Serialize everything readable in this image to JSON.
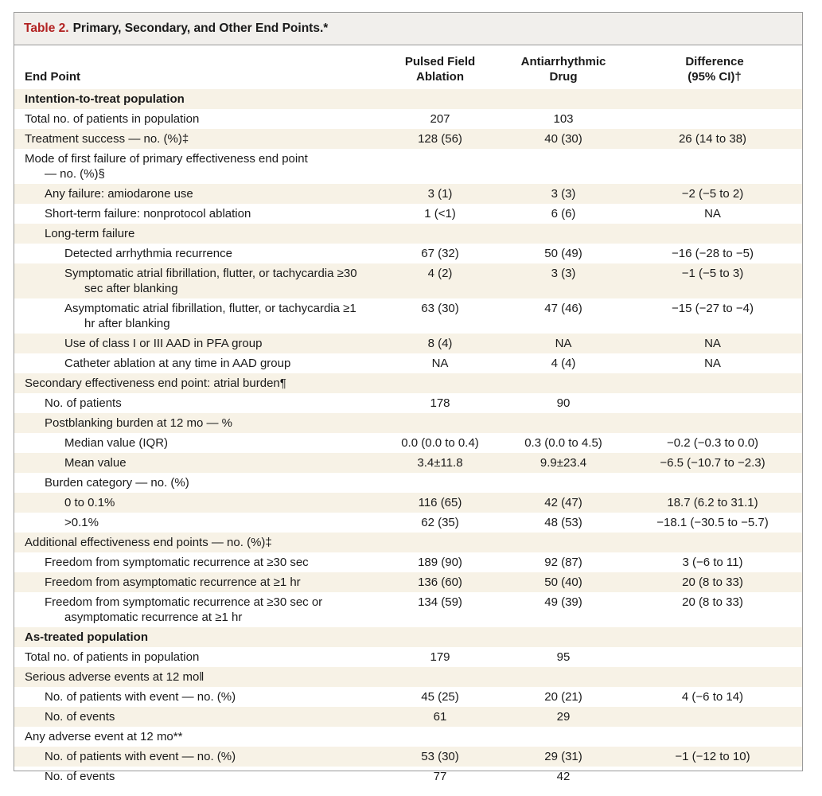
{
  "table": {
    "label": "Table 2.",
    "title": "Primary, Secondary, and Other End Points.*",
    "headers": {
      "end_point": "End Point",
      "pfa_line1": "Pulsed Field",
      "pfa_line2": "Ablation",
      "aad_line1": "Antiarrhythmic",
      "aad_line2": "Drug",
      "diff_line1": "Difference",
      "diff_line2": "(95% CI)†"
    },
    "rows": [
      {
        "label": "Intention-to-treat population",
        "pfa": "",
        "aad": "",
        "diff": ""
      },
      {
        "label": "Total no. of patients in population",
        "pfa": "207",
        "aad": "103",
        "diff": ""
      },
      {
        "label": "Treatment success — no. (%)‡",
        "pfa": "128 (56)",
        "aad": "40 (30)",
        "diff": "26 (14 to 38)"
      },
      {
        "label": "Mode of first failure of primary effectiveness end point",
        "label2": "— no. (%)§",
        "pfa": "",
        "aad": "",
        "diff": ""
      },
      {
        "label": "Any failure: amiodarone use",
        "pfa": "3 (1)",
        "aad": "3 (3)",
        "diff": "−2 (−5 to 2)"
      },
      {
        "label": "Short-term failure: nonprotocol ablation",
        "pfa": "1 (<1)",
        "aad": "6 (6)",
        "diff": "NA"
      },
      {
        "label": "Long-term failure",
        "pfa": "",
        "aad": "",
        "diff": ""
      },
      {
        "label": "Detected arrhythmia recurrence",
        "pfa": "67 (32)",
        "aad": "50 (49)",
        "diff": "−16 (−28 to −5)"
      },
      {
        "label": "Symptomatic atrial fibrillation, flutter, or tachycardia ≥30",
        "label2": "sec after blanking",
        "pfa": "4 (2)",
        "aad": "3 (3)",
        "diff": "−1 (−5 to 3)"
      },
      {
        "label": "Asymptomatic atrial fibrillation, flutter, or tachycardia ≥1",
        "label2": "hr after blanking",
        "pfa": "63 (30)",
        "aad": "47 (46)",
        "diff": "−15 (−27 to −4)"
      },
      {
        "label": "Use of class I or III AAD in PFA group",
        "pfa": "8 (4)",
        "aad": "NA",
        "diff": "NA"
      },
      {
        "label": "Catheter ablation at any time in AAD group",
        "pfa": "NA",
        "aad": "4 (4)",
        "diff": "NA"
      },
      {
        "label": "Secondary effectiveness end point: atrial burden¶",
        "pfa": "",
        "aad": "",
        "diff": ""
      },
      {
        "label": "No. of patients",
        "pfa": "178",
        "aad": "90",
        "diff": ""
      },
      {
        "label": "Postblanking burden at 12 mo — %",
        "pfa": "",
        "aad": "",
        "diff": ""
      },
      {
        "label": "Median value (IQR)",
        "pfa": "0.0 (0.0 to 0.4)",
        "aad": "0.3 (0.0 to 4.5)",
        "diff": "−0.2 (−0.3 to 0.0)"
      },
      {
        "label": "Mean value",
        "pfa": "3.4±11.8",
        "aad": "9.9±23.4",
        "diff": "−6.5 (−10.7 to −2.3)"
      },
      {
        "label": "Burden category — no. (%)",
        "pfa": "",
        "aad": "",
        "diff": ""
      },
      {
        "label": "0 to 0.1%",
        "pfa": "116 (65)",
        "aad": "42 (47)",
        "diff": "18.7 (6.2 to 31.1)"
      },
      {
        "label": ">0.1%",
        "pfa": "62 (35)",
        "aad": "48 (53)",
        "diff": "−18.1 (−30.5 to −5.7)"
      },
      {
        "label": "Additional effectiveness end points — no. (%)‡",
        "pfa": "",
        "aad": "",
        "diff": ""
      },
      {
        "label": "Freedom from symptomatic recurrence at ≥30 sec",
        "pfa": "189 (90)",
        "aad": "92 (87)",
        "diff": "3 (−6 to 11)"
      },
      {
        "label": "Freedom from asymptomatic recurrence at ≥1 hr",
        "pfa": "136 (60)",
        "aad": "50 (40)",
        "diff": "20 (8 to 33)"
      },
      {
        "label": "Freedom from symptomatic recurrence at ≥30 sec or",
        "label2": "asymptomatic recurrence at ≥1 hr",
        "pfa": "134 (59)",
        "aad": "49 (39)",
        "diff": "20 (8 to 33)"
      },
      {
        "label": "As-treated population",
        "pfa": "",
        "aad": "",
        "diff": ""
      },
      {
        "label": "Total no. of patients in population",
        "pfa": "179",
        "aad": "95",
        "diff": ""
      },
      {
        "label": "Serious adverse events at 12 mo‖",
        "pfa": "",
        "aad": "",
        "diff": ""
      },
      {
        "label": "No. of patients with event — no. (%)",
        "pfa": "45 (25)",
        "aad": "20 (21)",
        "diff": "4 (−6 to 14)"
      },
      {
        "label": "No. of events",
        "pfa": "61",
        "aad": "29",
        "diff": ""
      },
      {
        "label": "Any adverse event at 12 mo**",
        "pfa": "",
        "aad": "",
        "diff": ""
      },
      {
        "label": "No. of patients with event — no. (%)",
        "pfa": "53 (30)",
        "aad": "29 (31)",
        "diff": "−1 (−12 to 10)"
      },
      {
        "label": "No. of events",
        "pfa": "77",
        "aad": "42",
        "diff": ""
      }
    ]
  }
}
